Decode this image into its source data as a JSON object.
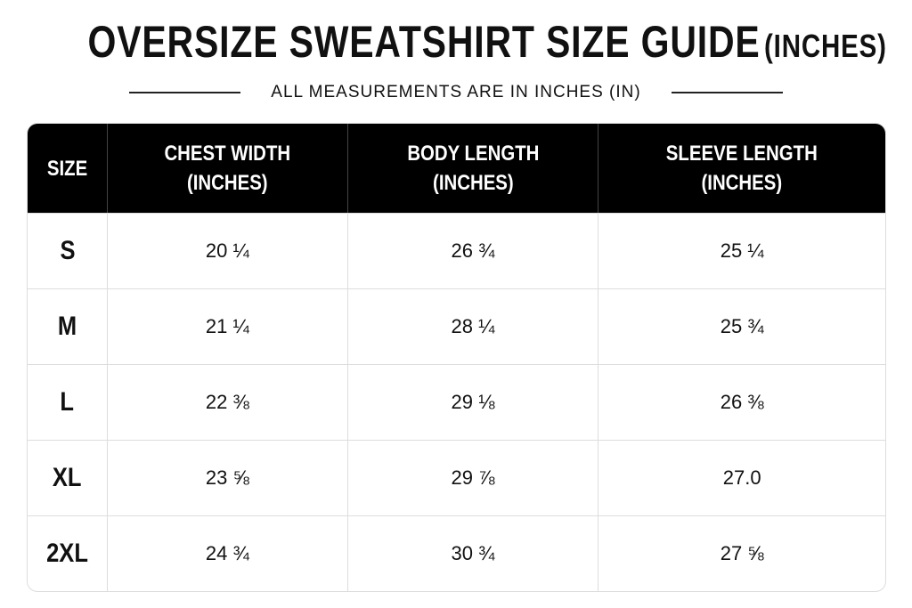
{
  "header": {
    "title": "OVERSIZE SWEATSHIRT SIZE GUIDE",
    "title_suffix": "(INCHES)",
    "subtitle": "ALL MEASUREMENTS ARE IN INCHES (IN)"
  },
  "table": {
    "headers": [
      [
        "SIZE"
      ],
      [
        "CHEST WIDTH",
        "(INCHES)"
      ],
      [
        "BODY LENGTH",
        "(INCHES)"
      ],
      [
        "SLEEVE LENGTH",
        "(INCHES)"
      ]
    ],
    "rows": [
      [
        "S",
        "20 ¼",
        "26 ¾",
        "25 ¼"
      ],
      [
        "M",
        "21 ¼",
        "28 ¼",
        "25 ¾"
      ],
      [
        "L",
        "22 ⅜",
        "29 ⅛",
        "26 ⅜"
      ],
      [
        "XL",
        "23 ⅝",
        "29 ⅞",
        "27.0"
      ],
      [
        "2XL",
        "24 ¾",
        "30 ¾",
        "27 ⅝"
      ]
    ]
  }
}
